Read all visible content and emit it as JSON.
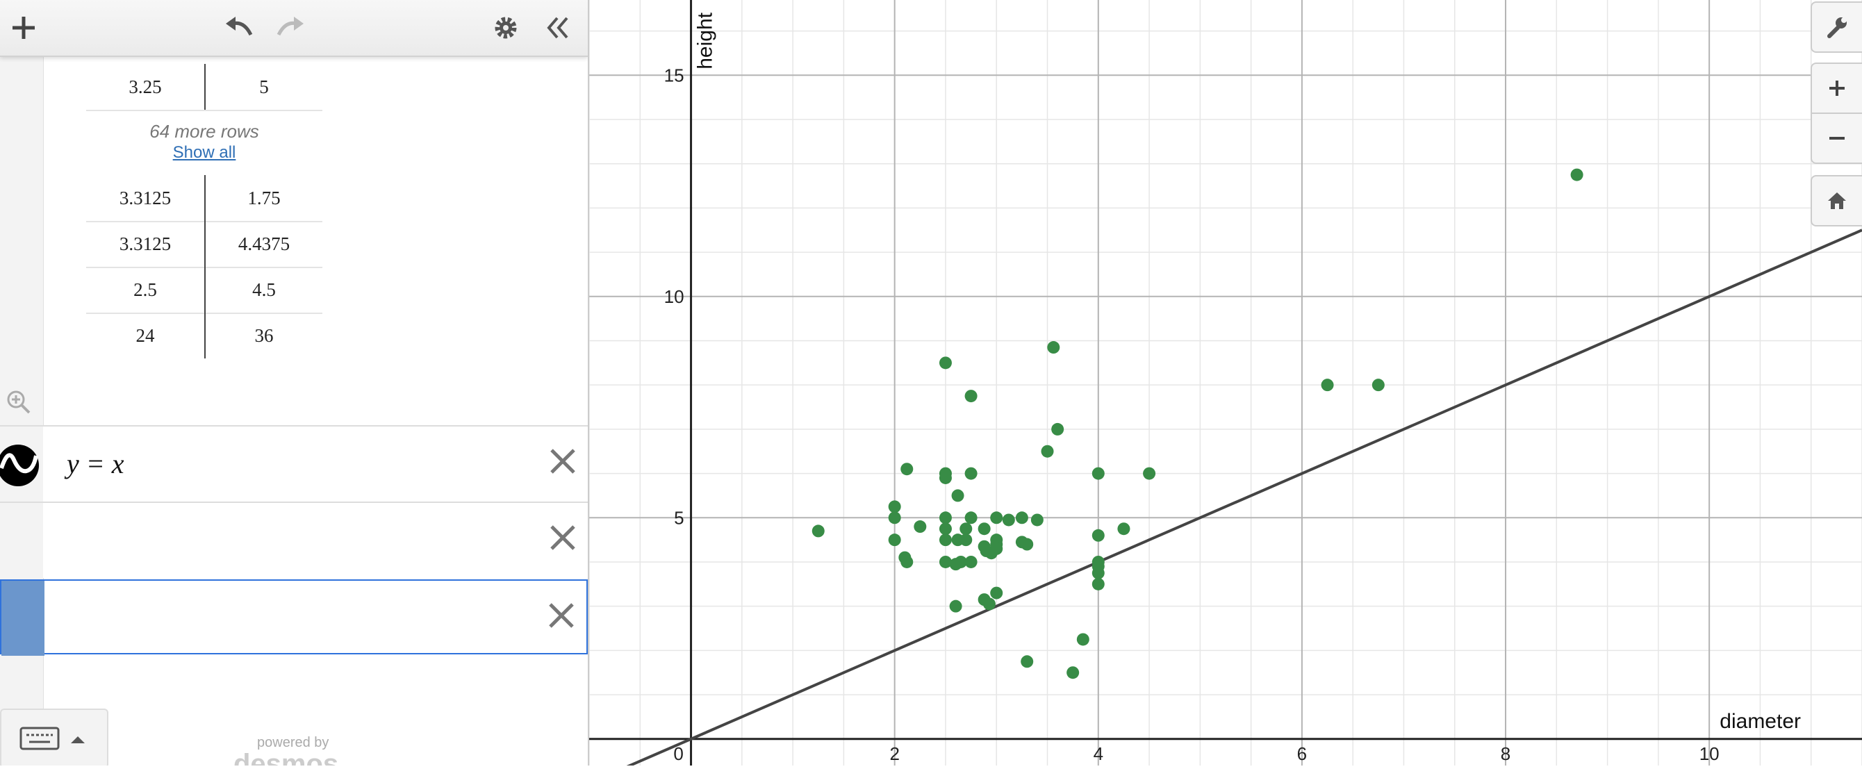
{
  "toolbar": {
    "add_icon": "plus-icon",
    "undo_icon": "undo-icon",
    "redo_icon": "redo-icon",
    "settings_icon": "gear-icon",
    "collapse_icon": "double-chevron-left-icon"
  },
  "table": {
    "rows_top": [
      [
        "3.25",
        "5"
      ]
    ],
    "more_rows_text": "64 more rows",
    "show_all_label": "Show all",
    "rows_bottom": [
      [
        "3.3125",
        "1.75"
      ],
      [
        "3.3125",
        "4.4375"
      ],
      [
        "2.5",
        "4.5"
      ],
      [
        "24",
        "36"
      ]
    ]
  },
  "expressions": [
    {
      "latex": "y = x",
      "color": "#000000"
    },
    {
      "latex": ""
    },
    {
      "latex": ""
    }
  ],
  "footer": {
    "powered_by": "powered by",
    "brand": "desmos"
  },
  "chart_data": {
    "type": "scatter",
    "xlabel": "diameter",
    "ylabel": "height",
    "xlim": [
      -1,
      11.5
    ],
    "ylim": [
      -0.6,
      16.7
    ],
    "x_ticks": [
      0,
      2,
      4,
      6,
      8,
      10
    ],
    "y_ticks": [
      5,
      10,
      15
    ],
    "grid": true,
    "point_color": "#388c46",
    "line": {
      "equation": "y = x",
      "color": "#444444"
    },
    "points": [
      [
        1.25,
        4.7
      ],
      [
        2.0,
        5.25
      ],
      [
        2.0,
        5.0
      ],
      [
        2.0,
        4.5
      ],
      [
        2.1,
        4.1
      ],
      [
        2.12,
        4.0
      ],
      [
        2.12,
        6.1
      ],
      [
        2.25,
        4.8
      ],
      [
        2.5,
        8.5
      ],
      [
        2.5,
        6.0
      ],
      [
        2.5,
        5.9
      ],
      [
        2.5,
        5.0
      ],
      [
        2.5,
        4.75
      ],
      [
        2.5,
        4.5
      ],
      [
        2.5,
        4.0
      ],
      [
        2.6,
        3.95
      ],
      [
        2.65,
        4.0
      ],
      [
        2.6,
        3.0
      ],
      [
        2.62,
        5.5
      ],
      [
        2.62,
        4.5
      ],
      [
        2.7,
        4.75
      ],
      [
        2.7,
        4.5
      ],
      [
        2.75,
        7.75
      ],
      [
        2.75,
        6.0
      ],
      [
        2.75,
        5.0
      ],
      [
        2.75,
        4.0
      ],
      [
        2.88,
        4.75
      ],
      [
        2.88,
        4.35
      ],
      [
        2.9,
        4.25
      ],
      [
        2.88,
        3.15
      ],
      [
        2.93,
        3.05
      ],
      [
        3.0,
        5.0
      ],
      [
        3.0,
        4.5
      ],
      [
        3.0,
        4.4
      ],
      [
        3.0,
        4.3
      ],
      [
        2.95,
        4.2
      ],
      [
        3.0,
        3.3
      ],
      [
        3.12,
        4.95
      ],
      [
        3.25,
        5.0
      ],
      [
        3.25,
        4.45
      ],
      [
        3.3,
        4.4
      ],
      [
        3.3,
        1.75
      ],
      [
        3.4,
        4.95
      ],
      [
        3.5,
        6.5
      ],
      [
        3.56,
        8.85
      ],
      [
        3.6,
        7.0
      ],
      [
        3.75,
        1.5
      ],
      [
        3.85,
        2.25
      ],
      [
        4.0,
        6.0
      ],
      [
        4.0,
        4.6
      ],
      [
        4.0,
        4.0
      ],
      [
        4.0,
        3.9
      ],
      [
        4.0,
        3.75
      ],
      [
        4.0,
        3.5
      ],
      [
        4.25,
        4.75
      ],
      [
        4.5,
        6.0
      ],
      [
        6.25,
        8.0
      ],
      [
        6.75,
        8.0
      ],
      [
        8.7,
        12.75
      ]
    ]
  }
}
